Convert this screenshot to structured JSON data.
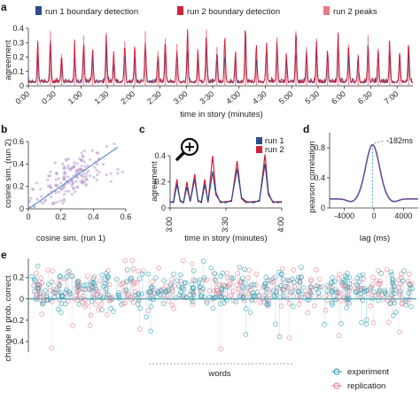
{
  "colors": {
    "run1": "#2a4d8f",
    "run2": "#d0213a",
    "peaks": "#e87a86",
    "lag_curve": "#6b4c9a",
    "experiment": "#3aa5b8",
    "replication": "#e3889a",
    "grey": "#999999"
  },
  "panels": {
    "a": "a",
    "b": "b",
    "c": "c",
    "d": "d",
    "e": "e"
  },
  "chart_data": [
    {
      "id": "a",
      "type": "line",
      "legend": [
        "run 1 boundary detection",
        "run 2 boundary detection",
        "run 2 peaks"
      ],
      "xlabel": "time in story (minutes)",
      "ylabel": "agreement",
      "xticks": [
        "0:00",
        "0:30",
        "1:00",
        "1:30",
        "2:00",
        "2:30",
        "3:00",
        "3:30",
        "4:00",
        "4:30",
        "5:00",
        "5:30",
        "6:00",
        "6:30",
        "7:00"
      ],
      "xlim": [
        0,
        7.3
      ],
      "ylim": [
        0,
        0.4
      ],
      "yticks": [
        "0",
        "0.1",
        "0.2",
        "0.3",
        "0.4"
      ],
      "peaks_minutes": [
        0.18,
        0.42,
        0.63,
        0.88,
        1.05,
        1.22,
        1.48,
        1.62,
        1.83,
        2.02,
        2.22,
        2.46,
        2.6,
        2.82,
        3.02,
        3.22,
        3.38,
        3.58,
        3.73,
        3.93,
        4.12,
        4.33,
        4.52,
        4.72,
        4.9,
        5.08,
        5.28,
        5.47,
        5.68,
        5.88,
        6.08,
        6.26,
        6.45,
        6.64,
        6.86,
        7.05,
        7.22
      ],
      "peak_heights": [
        0.28,
        0.38,
        0.22,
        0.3,
        0.35,
        0.25,
        0.37,
        0.2,
        0.31,
        0.26,
        0.38,
        0.24,
        0.33,
        0.29,
        0.36,
        0.23,
        0.39,
        0.27,
        0.32,
        0.22,
        0.37,
        0.25,
        0.3,
        0.34,
        0.21,
        0.38,
        0.27,
        0.33,
        0.24,
        0.36,
        0.29,
        0.22,
        0.35,
        0.26,
        0.31,
        0.23,
        0.28
      ]
    },
    {
      "id": "b",
      "type": "scatter",
      "xlabel": "cosine sim. (run 1)",
      "ylabel": "cosine sim. (run 2)",
      "xticks": [
        "0",
        "0.2",
        "0.4",
        "0.6"
      ],
      "yticks": [
        "0",
        "0.2",
        "0.4",
        "0.6"
      ],
      "xlim": [
        0,
        0.6
      ],
      "ylim": [
        0,
        0.6
      ],
      "fit_line": [
        [
          0,
          0.0
        ],
        [
          0.55,
          0.55
        ]
      ]
    },
    {
      "id": "c",
      "type": "line",
      "legend": [
        "run 1",
        "run 2"
      ],
      "xlabel": "time in story (minutes)",
      "ylabel": "agreement",
      "xticks": [
        "3:00",
        "3:30",
        "4:00"
      ],
      "yticks": [
        "0",
        "0.2",
        "0.4"
      ],
      "xlim": [
        3.0,
        4.0
      ],
      "ylim": [
        0,
        0.4
      ],
      "run1": [
        [
          3.0,
          0.05
        ],
        [
          3.03,
          0.04
        ],
        [
          3.06,
          0.18
        ],
        [
          3.09,
          0.06
        ],
        [
          3.12,
          0.04
        ],
        [
          3.15,
          0.16
        ],
        [
          3.18,
          0.05
        ],
        [
          3.22,
          0.22
        ],
        [
          3.25,
          0.06
        ],
        [
          3.28,
          0.04
        ],
        [
          3.31,
          0.18
        ],
        [
          3.34,
          0.05
        ],
        [
          3.38,
          0.28
        ],
        [
          3.41,
          0.1
        ],
        [
          3.45,
          0.05
        ],
        [
          3.5,
          0.04
        ],
        [
          3.55,
          0.06
        ],
        [
          3.6,
          0.3
        ],
        [
          3.64,
          0.08
        ],
        [
          3.68,
          0.05
        ],
        [
          3.75,
          0.04
        ],
        [
          3.8,
          0.06
        ],
        [
          3.85,
          0.34
        ],
        [
          3.88,
          0.1
        ],
        [
          3.92,
          0.05
        ],
        [
          3.97,
          0.04
        ],
        [
          4.0,
          0.05
        ]
      ],
      "run2": [
        [
          3.0,
          0.04
        ],
        [
          3.03,
          0.05
        ],
        [
          3.06,
          0.22
        ],
        [
          3.09,
          0.05
        ],
        [
          3.12,
          0.04
        ],
        [
          3.15,
          0.2
        ],
        [
          3.18,
          0.05
        ],
        [
          3.22,
          0.26
        ],
        [
          3.25,
          0.05
        ],
        [
          3.28,
          0.05
        ],
        [
          3.31,
          0.22
        ],
        [
          3.34,
          0.04
        ],
        [
          3.38,
          0.4
        ],
        [
          3.41,
          0.12
        ],
        [
          3.45,
          0.04
        ],
        [
          3.5,
          0.05
        ],
        [
          3.55,
          0.05
        ],
        [
          3.6,
          0.36
        ],
        [
          3.64,
          0.07
        ],
        [
          3.68,
          0.04
        ],
        [
          3.75,
          0.05
        ],
        [
          3.8,
          0.05
        ],
        [
          3.85,
          0.41
        ],
        [
          3.88,
          0.12
        ],
        [
          3.92,
          0.04
        ],
        [
          3.97,
          0.05
        ],
        [
          4.0,
          0.04
        ]
      ]
    },
    {
      "id": "d",
      "type": "line",
      "xlabel": "lag (ms)",
      "ylabel": "pearson correlation",
      "xticks": [
        "-4000",
        "0",
        "4000"
      ],
      "yticks": [
        "0",
        "0.4",
        "0.8"
      ],
      "xlim": [
        -6000,
        6000
      ],
      "ylim": [
        0,
        1.0
      ],
      "annotation": "-182ms",
      "peak": [
        -182,
        0.84
      ]
    },
    {
      "id": "e",
      "type": "scatter",
      "xlabel": "words",
      "ylabel": "change in prob. correct",
      "yticks": [
        "-0.4",
        "-0.2",
        "0",
        "0.2"
      ],
      "ylim": [
        -0.5,
        0.38
      ],
      "legend": [
        "experiment",
        "replication"
      ],
      "n_points_per_series": 320
    }
  ]
}
